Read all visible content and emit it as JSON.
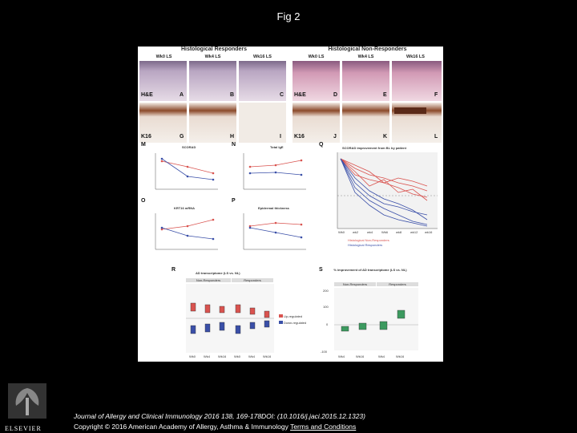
{
  "title": "Fig 2",
  "figure": {
    "groups": [
      "Histological Responders",
      "Histological Non-Responders"
    ],
    "tile_headers": [
      "Wk0 LS",
      "Wk4 LS",
      "Wk16 LS",
      "Wk0 LS",
      "Wk4 LS",
      "Wk16 LS"
    ],
    "row1_labels": [
      "H&E",
      "A",
      "B",
      "C",
      "H&E",
      "D",
      "E",
      "F"
    ],
    "row2_labels": [
      "K16",
      "G",
      "H",
      "I",
      "K16",
      "J",
      "K",
      "L"
    ],
    "panel_letters": [
      "M",
      "N",
      "O",
      "P",
      "Q",
      "R",
      "S"
    ],
    "panel_titles": {
      "M": "SCORAD",
      "N": "Total IgE",
      "O": "KRT16 mRNA",
      "P": "Epidermal thickness",
      "Q": "SCORAD improvement from BL by patient",
      "R": "AD transcriptome (LS vs. NL)",
      "S": "% improvement of AD transcriptome (LS vs. NL)"
    },
    "q_x_ticks": [
      "Wk0",
      "wk2",
      "wk4",
      "Wk6",
      "wk8",
      "wk12",
      "wk16"
    ],
    "q_legend": [
      "Histological Non-Responders",
      "Histological Responders"
    ],
    "r_headers": [
      "Non-Responders",
      "Responders"
    ],
    "r_x_ticks": [
      "Wk0",
      "Wk4",
      "Wk16",
      "Wk0",
      "Wk4",
      "Wk16"
    ],
    "r_legend": [
      "Up-regulated",
      "Down-regulated"
    ],
    "s_headers": [
      "Non-Responders",
      "Responders"
    ],
    "s_x_ticks": [
      "Wk4",
      "Wk16",
      "Wk4",
      "Wk16"
    ],
    "s_y_ticks": [
      "200",
      "100",
      "0",
      "-100"
    ],
    "s_ylabel": "% Improvement",
    "colors": {
      "responder": "#3a4fa8",
      "non_responder": "#d9534f",
      "box_green": "#3c9a5f"
    }
  },
  "footer": {
    "citation": "Journal of Allergy and Clinical Immunology 2016 138, 169-178DOI: (10.1016/j.jaci.2015.12.1323)",
    "copyright": "Copyright © 2016 American Academy of Allergy, Asthma & Immunology",
    "link": "Terms and Conditions"
  },
  "logo_text": "ELSEVIER"
}
